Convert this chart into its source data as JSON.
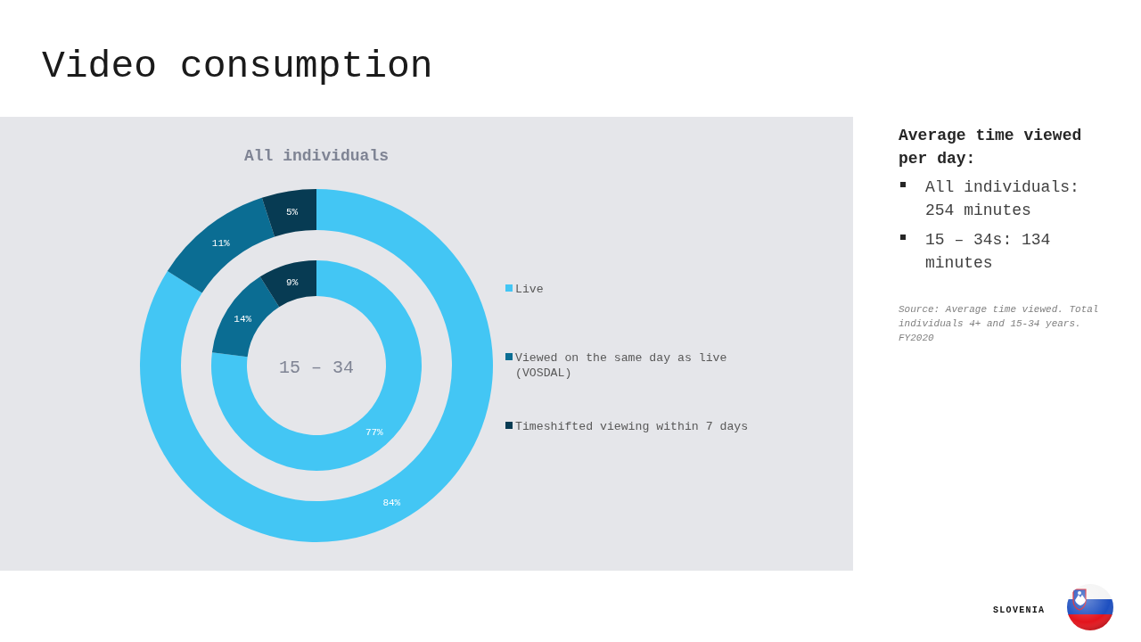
{
  "chart_data": [
    {
      "type": "donut",
      "title": "Video consumption",
      "categories": [
        "Live",
        "Viewed on the same day as live (VOSDAL)",
        "Timeshifted viewing within 7 days"
      ],
      "series": [
        {
          "name": "All individuals",
          "colors": [
            "#43c6f4",
            "#0b6d93",
            "#073b53"
          ],
          "values": [
            84,
            11,
            5
          ],
          "value_labels": [
            "84%",
            "11%",
            "5%"
          ]
        }
      ],
      "legend": "right",
      "annotations": [
        "Average time viewed per day:",
        "All individuals: 254 minutes",
        "15 – 34s: 134 minutes",
        "Source: Average time viewed. Total individuals 4+ and 15-34 years. FY2020",
        "SLOVENIA"
      ]
    },
    {
      "type": "donut",
      "categories": [
        null,
        null,
        null
      ],
      "series": [
        {
          "name": "15 – 34",
          "colors": [
            "#43c6f4",
            "#0b6d93",
            "#073b53"
          ],
          "values": [
            77,
            14,
            9
          ],
          "value_labels": [
            "77%",
            "14%",
            "9%"
          ]
        }
      ]
    }
  ]
}
